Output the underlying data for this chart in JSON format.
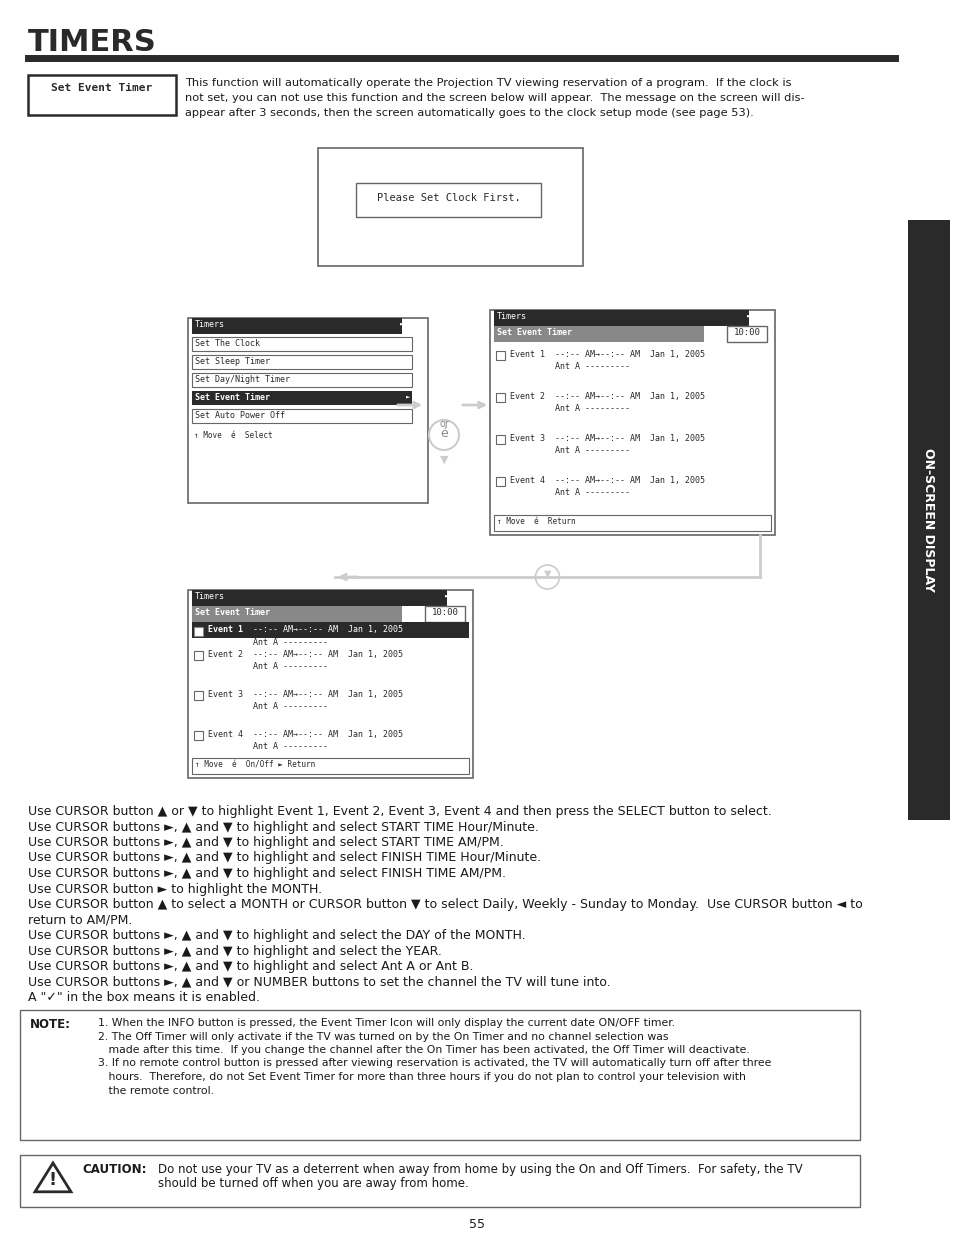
{
  "title": "TIMERS",
  "page_num": "55",
  "bg_color": "#ffffff",
  "title_color": "#1a1a1a",
  "text_color": "#1a1a1a",
  "set_event_timer_label": "Set Event Timer",
  "intro_text_lines": [
    "This function will automatically operate the Projection TV viewing reservation of a program.  If the clock is",
    "not set, you can not use this function and the screen below will appear.  The message on the screen will dis-",
    "appear after 3 seconds, then the screen automatically goes to the clock setup mode (see page 53)."
  ],
  "please_set_clock": "Please Set Clock First.",
  "menu_title": "Timers",
  "menu_items": [
    "Set The Clock",
    "Set Sleep Timer",
    "Set Day/Night Timer",
    "Set Event Timer",
    "Set Auto Power Off"
  ],
  "menu_footer": "↑ Move  é  Select",
  "event_timer_title": "Set Event Timer",
  "event_timer_time": "10:00",
  "event_rows": [
    [
      "Event 1",
      "--:-- AM→--:-- AM  Jan 1, 2005",
      "Ant A ---------"
    ],
    [
      "Event 2",
      "--:-- AM→--:-- AM  Jan 1, 2005",
      "Ant A ---------"
    ],
    [
      "Event 3",
      "--:-- AM→--:-- AM  Jan 1, 2005",
      "Ant A ---------"
    ],
    [
      "Event 4",
      "--:-- AM→--:-- AM  Jan 1, 2005",
      "Ant A ---------"
    ]
  ],
  "event_timer_footer": "↑ Move  é  Return",
  "bottom_footer": "↑ Move  é  On/Off ► Return",
  "body_instructions": [
    "Use CURSOR button ▲ or ▼ to highlight Event 1, Event 2, Event 3, Event 4 and then press the SELECT button to select.",
    "Use CURSOR buttons ►, ▲ and ▼ to highlight and select START TIME Hour/Minute.",
    "Use CURSOR buttons ►, ▲ and ▼ to highlight and select START TIME AM/PM.",
    "Use CURSOR buttons ►, ▲ and ▼ to highlight and select FINISH TIME Hour/Minute.",
    "Use CURSOR buttons ►, ▲ and ▼ to highlight and select FINISH TIME AM/PM.",
    "Use CURSOR button ► to highlight the MONTH.",
    "Use CURSOR button ▲ to select a MONTH or CURSOR button ▼ to select Daily, Weekly - Sunday to Monday.  Use CURSOR button ◄ to",
    "return to AM/PM.",
    "Use CURSOR buttons ►, ▲ and ▼ to highlight and select the DAY of the MONTH.",
    "Use CURSOR buttons ►, ▲ and ▼ to highlight and select the YEAR.",
    "Use CURSOR buttons ►, ▲ and ▼ to highlight and select Ant A or Ant B.",
    "Use CURSOR buttons ►, ▲ and ▼ or NUMBER buttons to set the channel the TV will tune into.",
    "A \"✓\" in the box means it is enabled."
  ],
  "note_label": "NOTE:",
  "note_items": [
    "1. When the INFO button is pressed, the Event Timer Icon will only display the current date ON/OFF timer.",
    "2. The Off Timer will only activate if the TV was turned on by the On Timer and no channel selection was",
    "   made after this time.  If you change the channel after the On Timer has been activated, the Off Timer will deactivate.",
    "3. If no remote control button is pressed after viewing reservation is activated, the TV will automatically turn off after three",
    "   hours.  Therefore, do not Set Event Timer for more than three hours if you do not plan to control your television with",
    "   the remote control."
  ],
  "caution_label": "CAUTION:",
  "caution_lines": [
    "Do not use your TV as a deterrent when away from home by using the On and Off Timers.  For safety, the TV",
    "should be turned off when you are away from home."
  ],
  "side_label": "ON-SCREEN DISPLAY",
  "dark_color": "#2a2a2a",
  "gray_color": "#888888",
  "light_gray": "#cccccc",
  "mid_gray": "#666666"
}
